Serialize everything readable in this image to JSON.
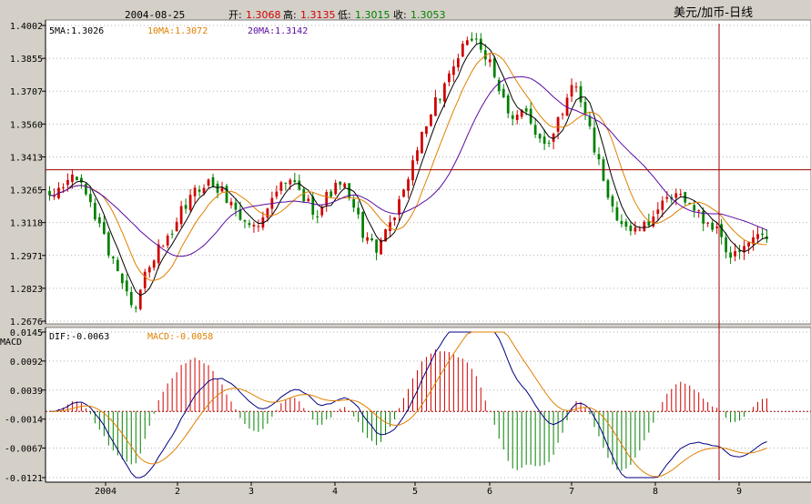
{
  "header": {
    "date": "2004-08-25",
    "open_label": "开:",
    "open": "1.3068",
    "high_label": "高:",
    "high": "1.3135",
    "low_label": "低:",
    "low": "1.3015",
    "close_label": "收:",
    "close": "1.3053",
    "instrument": "美元/加币-日线"
  },
  "price_panel": {
    "ma_labels": [
      "5MA:1.3026",
      "10MA:1.3072",
      "20MA:1.3142"
    ],
    "y_ticks": [
      "1.4002",
      "1.3855",
      "1.3707",
      "1.3560",
      "1.3413",
      "1.3265",
      "1.3118",
      "1.2971",
      "1.2823",
      "1.2676"
    ],
    "crosshair_price": 1.3355
  },
  "macd_panel": {
    "title": "MACD",
    "dif_label": "DIF:-0.0063",
    "macd_label": "MACD:-0.0058",
    "y_ticks": [
      "0.0145",
      "0.0092",
      "0.0039",
      "-0.0014",
      "-0.0067",
      "-0.0121"
    ]
  },
  "x_axis": {
    "labels": [
      "2004",
      "2",
      "3",
      "4",
      "5",
      "6",
      "7",
      "8",
      "9"
    ]
  },
  "colors": {
    "background": "#ffffff",
    "up": "#d00000",
    "down": "#008000",
    "ma5": "#000000",
    "ma10": "#e08000",
    "ma20": "#5a0aa0",
    "crosshair": "#a00000"
  },
  "chart_data": {
    "type": "candlestick",
    "title": "美元/加币-日线",
    "ylim_price": [
      1.2676,
      1.4002
    ],
    "ylim_macd": [
      -0.0121,
      0.0145
    ],
    "series_anchor_closes": [
      1.322,
      1.328,
      1.333,
      1.325,
      1.312,
      1.298,
      1.285,
      1.275,
      1.29,
      1.3,
      1.305,
      1.318,
      1.326,
      1.33,
      1.326,
      1.32,
      1.312,
      1.31,
      1.32,
      1.328,
      1.33,
      1.322,
      1.316,
      1.325,
      1.33,
      1.318,
      1.305,
      1.3,
      1.312,
      1.325,
      1.34,
      1.355,
      1.368,
      1.38,
      1.39,
      1.395,
      1.385,
      1.37,
      1.36,
      1.362,
      1.35,
      1.348,
      1.36,
      1.375,
      1.362,
      1.34,
      1.322,
      1.312,
      1.308,
      1.31,
      1.318,
      1.322,
      1.324,
      1.318,
      1.312,
      1.308,
      1.296,
      1.3,
      1.305,
      1.305
    ],
    "anchor_count": 60,
    "candle_count": 159,
    "period_days": 173
  }
}
